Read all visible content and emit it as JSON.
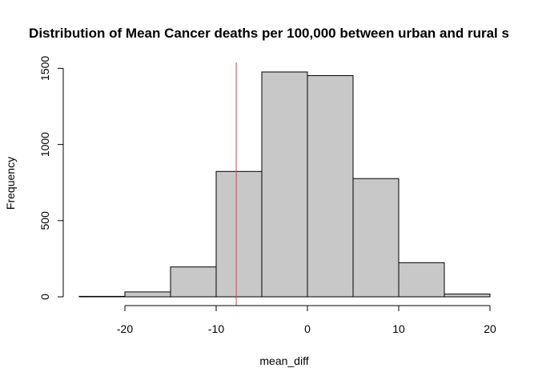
{
  "chart_data": {
    "type": "histogram",
    "title": "Distribution of Mean Cancer deaths per 100,000 between urban and rural s",
    "xlabel": "mean_diff",
    "ylabel": "Frequency",
    "bins": [
      {
        "x0": -25,
        "x1": -20,
        "count": 3
      },
      {
        "x0": -20,
        "x1": -15,
        "count": 32
      },
      {
        "x0": -15,
        "x1": -10,
        "count": 196
      },
      {
        "x0": -10,
        "x1": -5,
        "count": 823
      },
      {
        "x0": -5,
        "x1": 0,
        "count": 1476
      },
      {
        "x0": 0,
        "x1": 5,
        "count": 1452
      },
      {
        "x0": 5,
        "x1": 10,
        "count": 776
      },
      {
        "x0": 10,
        "x1": 15,
        "count": 224
      },
      {
        "x0": 15,
        "x1": 20,
        "count": 18
      }
    ],
    "xlim": [
      -25,
      20
    ],
    "ylim": [
      0,
      1500
    ],
    "x_ticks": [
      -20,
      -10,
      0,
      10,
      20
    ],
    "y_ticks": [
      0,
      500,
      1000,
      1500
    ],
    "x_tick_labels": [
      "-20",
      "-10",
      "0",
      "10",
      "20"
    ],
    "y_tick_labels": [
      "0",
      "500",
      "1000",
      "1500"
    ],
    "reference_line": {
      "x": -7.8,
      "color": "#e8384f"
    },
    "bar_fill": "#c8c8c8",
    "bar_stroke": "#000000",
    "grid": false
  }
}
